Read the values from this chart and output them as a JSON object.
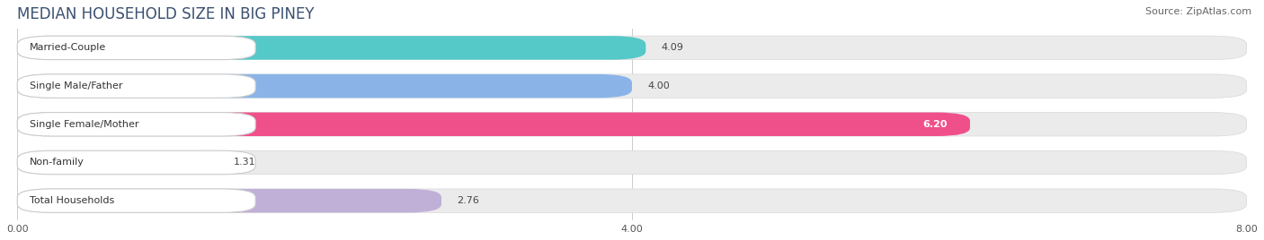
{
  "title": "MEDIAN HOUSEHOLD SIZE IN BIG PINEY",
  "source": "Source: ZipAtlas.com",
  "categories": [
    "Married-Couple",
    "Single Male/Father",
    "Single Female/Mother",
    "Non-family",
    "Total Households"
  ],
  "values": [
    4.09,
    4.0,
    6.2,
    1.31,
    2.76
  ],
  "bar_colors": [
    "#55c8c8",
    "#8ab4e8",
    "#f0508a",
    "#f8d0a0",
    "#c0b0d8"
  ],
  "bar_bg_color": "#ebebeb",
  "bar_bg_edge_color": "#d8d8d8",
  "label_colors": [
    "#333333",
    "#333333",
    "#ffffff",
    "#333333",
    "#333333"
  ],
  "xlim": [
    0,
    8.0
  ],
  "xticks": [
    0.0,
    4.0,
    8.0
  ],
  "xtick_labels": [
    "0.00",
    "4.00",
    "8.00"
  ],
  "background_color": "#ffffff",
  "title_color": "#3a5070",
  "title_fontsize": 12,
  "source_fontsize": 8,
  "label_fontsize": 8,
  "value_fontsize": 8,
  "tick_fontsize": 8
}
